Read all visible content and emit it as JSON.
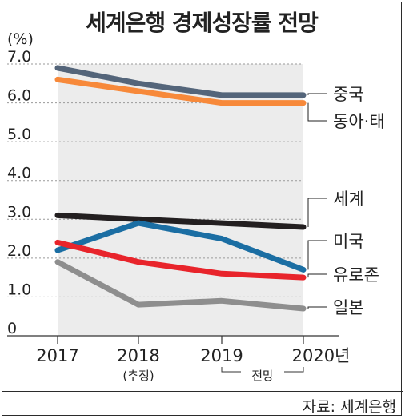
{
  "chart_data": {
    "type": "line",
    "title": "세계은행 경제성장률 전망",
    "ylabel": "(%)",
    "ylim": [
      0,
      7
    ],
    "yticks": [
      "0",
      "1.0",
      "2.0",
      "3.0",
      "4.0",
      "5.0",
      "6.0",
      "7.0"
    ],
    "categories": [
      "2017",
      "2018",
      "2019",
      "2020년"
    ],
    "category_notes": [
      "",
      "(추정)",
      "",
      ""
    ],
    "projection_note": "전망",
    "grid": true,
    "series": [
      {
        "name": "중국",
        "color": "#54657a",
        "values": [
          6.9,
          6.5,
          6.2,
          6.2
        ]
      },
      {
        "name": "동아·태",
        "color": "#f7893a",
        "values": [
          6.6,
          6.3,
          6.0,
          6.0
        ]
      },
      {
        "name": "세계",
        "color": "#231f20",
        "values": [
          3.1,
          3.0,
          2.9,
          2.8
        ]
      },
      {
        "name": "미국",
        "color": "#1b6ea3",
        "values": [
          2.2,
          2.9,
          2.5,
          1.7
        ]
      },
      {
        "name": "유로존",
        "color": "#e8242b",
        "values": [
          2.4,
          1.9,
          1.6,
          1.5
        ]
      },
      {
        "name": "일본",
        "color": "#8e8e8e",
        "values": [
          1.9,
          0.8,
          0.9,
          0.7
        ]
      }
    ],
    "source": "자료: 세계은행"
  }
}
